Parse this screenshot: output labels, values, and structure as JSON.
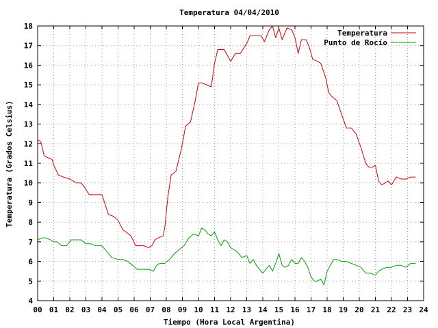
{
  "chart_data": {
    "type": "line",
    "title": "Temperatura 04/04/2010",
    "xlabel": "Tiempo (Hora Local Argentina)",
    "ylabel": "Temperatura (Grados Celsius)",
    "xlim": [
      0,
      24
    ],
    "ylim": [
      4,
      18
    ],
    "x_ticks": [
      "00",
      "01",
      "02",
      "03",
      "04",
      "05",
      "06",
      "07",
      "08",
      "09",
      "10",
      "11",
      "12",
      "13",
      "14",
      "15",
      "16",
      "17",
      "18",
      "19",
      "20",
      "21",
      "22",
      "23",
      "24"
    ],
    "y_ticks": [
      "4",
      "5",
      "6",
      "7",
      "8",
      "9",
      "10",
      "11",
      "12",
      "13",
      "14",
      "15",
      "16",
      "17",
      "18"
    ],
    "grid": true,
    "legend_position": "top-right",
    "series": [
      {
        "name": "Temperatura",
        "color": "#cc0000",
        "x": [
          0.0,
          0.2,
          0.4,
          0.6,
          0.9,
          1.0,
          1.3,
          1.6,
          2.0,
          2.4,
          2.7,
          2.9,
          3.2,
          3.5,
          4.0,
          4.2,
          4.4,
          4.7,
          5.0,
          5.3,
          5.5,
          5.8,
          6.1,
          6.3,
          6.6,
          6.9,
          7.1,
          7.3,
          7.5,
          7.8,
          7.9,
          8.0,
          8.1,
          8.3,
          8.6,
          8.9,
          9.0,
          9.2,
          9.5,
          9.8,
          10.0,
          10.2,
          10.5,
          10.8,
          11.0,
          11.2,
          11.4,
          11.6,
          12.0,
          12.3,
          12.6,
          13.0,
          13.2,
          13.4,
          13.6,
          13.9,
          14.1,
          14.4,
          14.6,
          14.8,
          15.0,
          15.2,
          15.5,
          15.8,
          16.0,
          16.2,
          16.4,
          16.7,
          16.9,
          17.1,
          17.4,
          17.6,
          17.9,
          18.1,
          18.3,
          18.6,
          18.9,
          19.2,
          19.5,
          19.8,
          20.1,
          20.4,
          20.6,
          20.8,
          21.0,
          21.2,
          21.4,
          21.6,
          21.8,
          22.0,
          22.3,
          22.6,
          22.9,
          23.2,
          23.5
        ],
        "y": [
          12.2,
          12.1,
          11.4,
          11.3,
          11.2,
          10.9,
          10.4,
          10.3,
          10.2,
          10.0,
          10.0,
          9.8,
          9.4,
          9.4,
          9.4,
          8.9,
          8.4,
          8.3,
          8.1,
          7.6,
          7.5,
          7.3,
          6.8,
          6.8,
          6.8,
          6.7,
          6.8,
          7.1,
          7.2,
          7.3,
          7.7,
          8.5,
          9.3,
          10.4,
          10.6,
          11.6,
          12.0,
          12.9,
          13.1,
          14.2,
          15.1,
          15.1,
          15.0,
          14.9,
          16.1,
          16.8,
          16.8,
          16.8,
          16.2,
          16.6,
          16.6,
          17.1,
          17.5,
          17.5,
          17.5,
          17.5,
          17.2,
          17.8,
          18.0,
          17.4,
          17.9,
          17.3,
          17.9,
          17.8,
          17.4,
          16.6,
          17.3,
          17.3,
          16.9,
          16.3,
          16.2,
          16.1,
          15.4,
          14.6,
          14.4,
          14.2,
          13.5,
          12.8,
          12.8,
          12.5,
          11.8,
          11.0,
          10.8,
          10.8,
          10.9,
          10.1,
          9.9,
          10.0,
          10.1,
          9.9,
          10.3,
          10.2,
          10.2,
          10.3,
          10.3
        ]
      },
      {
        "name": "Punto de Rocío",
        "color": "#00a000",
        "x": [
          0.0,
          0.3,
          0.5,
          0.8,
          1.0,
          1.2,
          1.5,
          1.8,
          2.1,
          2.4,
          2.7,
          3.0,
          3.3,
          3.6,
          4.0,
          4.3,
          4.6,
          5.0,
          5.3,
          5.6,
          5.9,
          6.2,
          6.5,
          6.9,
          7.2,
          7.4,
          7.6,
          7.9,
          8.2,
          8.5,
          8.8,
          9.1,
          9.4,
          9.7,
          10.0,
          10.2,
          10.4,
          10.6,
          10.8,
          11.0,
          11.2,
          11.4,
          11.6,
          11.8,
          12.0,
          12.2,
          12.4,
          12.7,
          13.0,
          13.2,
          13.4,
          13.6,
          13.8,
          14.0,
          14.2,
          14.4,
          14.6,
          14.8,
          15.0,
          15.2,
          15.4,
          15.6,
          15.8,
          16.0,
          16.2,
          16.4,
          16.6,
          16.8,
          17.0,
          17.2,
          17.4,
          17.6,
          17.8,
          18.0,
          18.2,
          18.4,
          18.6,
          18.9,
          19.2,
          19.5,
          19.8,
          20.1,
          20.4,
          20.7,
          21.0,
          21.2,
          21.4,
          21.7,
          22.0,
          22.3,
          22.6,
          22.9,
          23.2,
          23.5
        ],
        "y": [
          7.1,
          7.2,
          7.2,
          7.1,
          7.0,
          7.0,
          6.8,
          6.8,
          7.1,
          7.1,
          7.1,
          6.9,
          6.9,
          6.8,
          6.8,
          6.5,
          6.2,
          6.1,
          6.1,
          6.0,
          5.8,
          5.6,
          5.6,
          5.6,
          5.5,
          5.8,
          5.9,
          5.9,
          6.1,
          6.4,
          6.6,
          6.8,
          7.2,
          7.4,
          7.3,
          7.7,
          7.6,
          7.4,
          7.3,
          7.5,
          7.1,
          6.8,
          7.1,
          7.0,
          6.7,
          6.6,
          6.5,
          6.2,
          6.3,
          5.9,
          6.1,
          5.8,
          5.6,
          5.4,
          5.6,
          5.8,
          5.5,
          5.9,
          6.4,
          5.8,
          5.7,
          5.8,
          6.1,
          5.9,
          5.9,
          6.2,
          6.0,
          5.7,
          5.2,
          5.0,
          5.0,
          5.1,
          4.8,
          5.5,
          5.8,
          6.1,
          6.1,
          6.0,
          6.0,
          5.9,
          5.8,
          5.7,
          5.4,
          5.4,
          5.3,
          5.5,
          5.6,
          5.7,
          5.7,
          5.8,
          5.8,
          5.7,
          5.9,
          5.9
        ]
      }
    ]
  }
}
